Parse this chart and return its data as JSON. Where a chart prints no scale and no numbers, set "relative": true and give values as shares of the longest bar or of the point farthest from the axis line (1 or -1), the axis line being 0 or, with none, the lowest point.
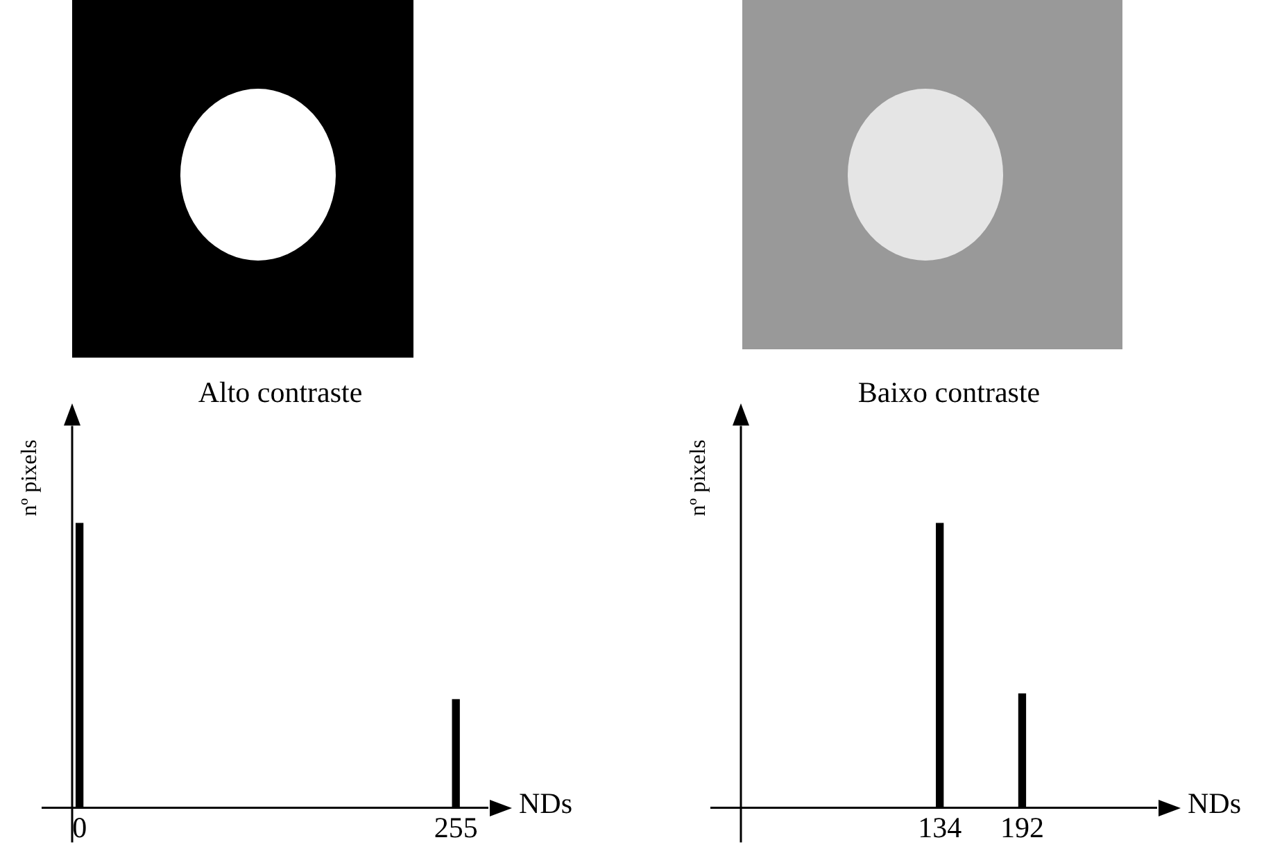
{
  "chart_data": [
    {
      "type": "bar",
      "title": "Alto contraste",
      "xlabel": "NDs",
      "ylabel": "nº pixels",
      "x": [
        0,
        255
      ],
      "values": [
        1,
        0.38
      ],
      "color": "#000000",
      "relative": true,
      "xlim": [
        -5,
        277
      ],
      "xticks": [
        0,
        255
      ]
    },
    {
      "type": "bar",
      "title": "Baixo contraste",
      "xlabel": "NDs",
      "ylabel": "nº pixels",
      "x": [
        134,
        192
      ],
      "values": [
        1,
        0.4
      ],
      "color": "#000000",
      "relative": true,
      "xlim": [
        -6,
        287
      ],
      "xticks": [
        134,
        192
      ]
    }
  ]
}
